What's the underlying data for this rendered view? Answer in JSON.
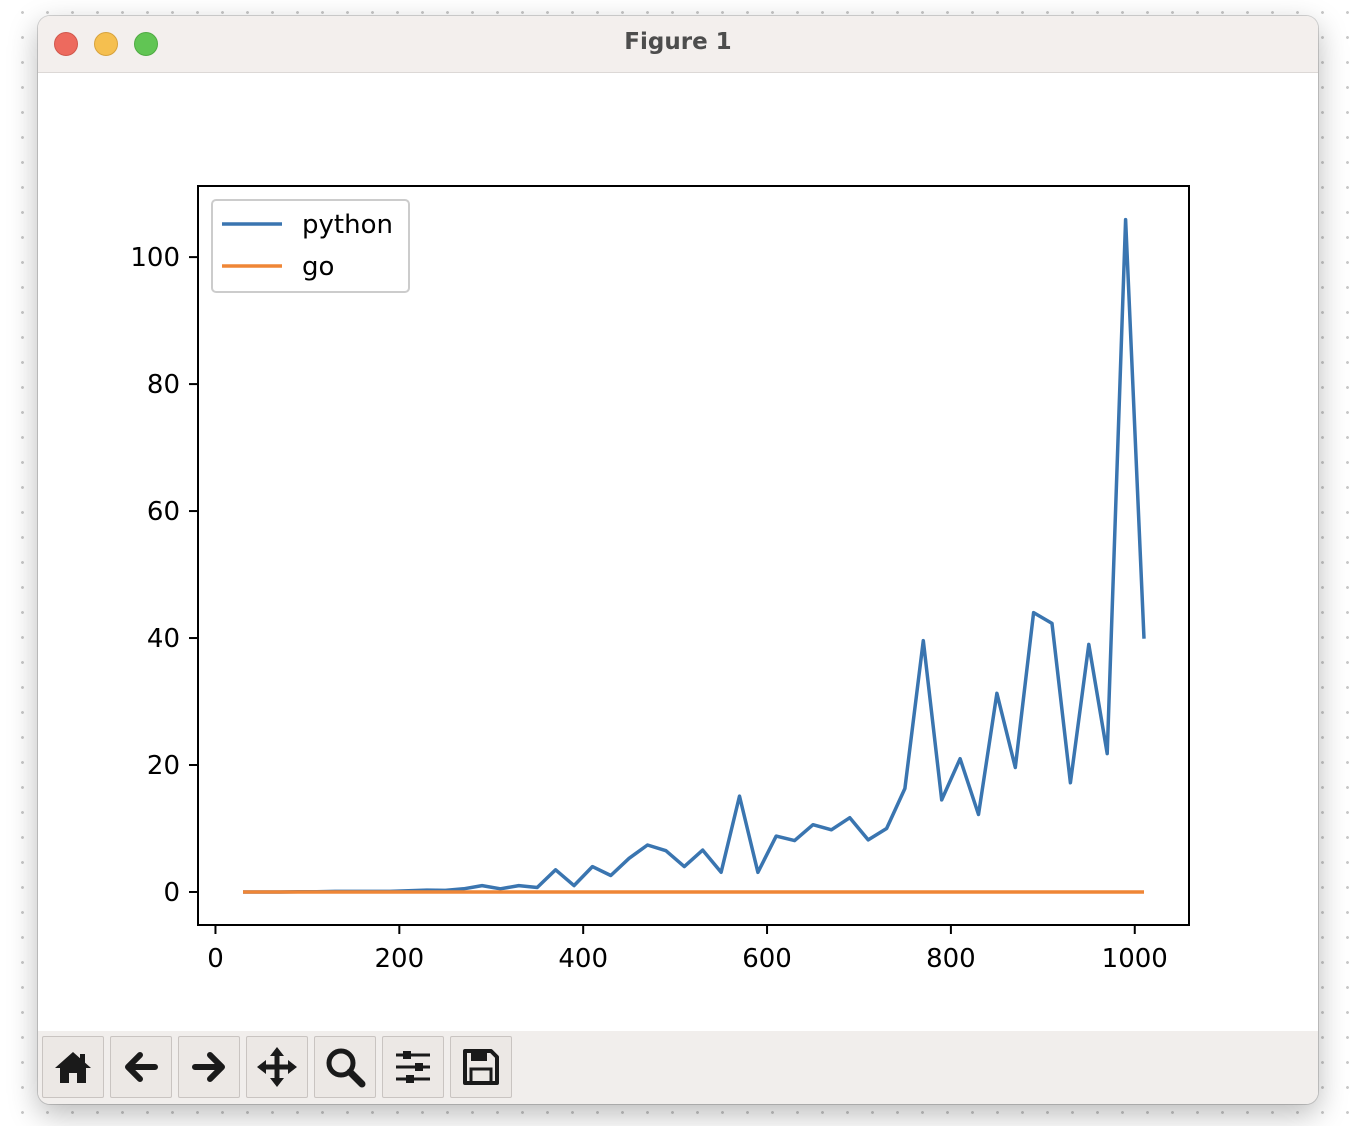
{
  "window": {
    "title": "Figure 1"
  },
  "toolbar": {
    "buttons": [
      {
        "name": "home-button",
        "icon": "home-icon"
      },
      {
        "name": "back-button",
        "icon": "arrow-left-icon"
      },
      {
        "name": "forward-button",
        "icon": "arrow-right-icon"
      },
      {
        "name": "pan-button",
        "icon": "move-icon"
      },
      {
        "name": "zoom-button",
        "icon": "magnifier-icon"
      },
      {
        "name": "configure-subplots-button",
        "icon": "sliders-icon"
      },
      {
        "name": "save-button",
        "icon": "floppy-disk-icon"
      }
    ]
  },
  "chart_data": {
    "type": "line",
    "title": "",
    "xlabel": "",
    "ylabel": "",
    "xlim": [
      -19,
      1059
    ],
    "ylim": [
      -5.2,
      111.2
    ],
    "xticks": [
      0,
      200,
      400,
      600,
      800,
      1000
    ],
    "yticks": [
      0,
      20,
      40,
      60,
      80,
      100
    ],
    "legend": {
      "placement": "upper left"
    },
    "grid": false,
    "x": [
      30,
      50,
      70,
      90,
      110,
      130,
      150,
      170,
      190,
      210,
      230,
      250,
      270,
      290,
      310,
      330,
      350,
      370,
      390,
      410,
      430,
      450,
      470,
      490,
      510,
      530,
      550,
      570,
      590,
      610,
      630,
      650,
      670,
      690,
      710,
      730,
      750,
      770,
      790,
      810,
      830,
      850,
      870,
      890,
      910,
      930,
      950,
      970,
      990,
      1010
    ],
    "series": [
      {
        "name": "python",
        "color": "#3a75b0",
        "values": [
          0.0,
          0.0,
          0.0,
          0.05,
          0.05,
          0.1,
          0.1,
          0.1,
          0.1,
          0.2,
          0.3,
          0.25,
          0.5,
          1.0,
          0.5,
          1.0,
          0.7,
          3.5,
          1.0,
          4.0,
          2.6,
          5.3,
          7.4,
          6.5,
          4.0,
          6.6,
          3.1,
          15.1,
          3.1,
          8.8,
          8.1,
          10.6,
          9.8,
          11.7,
          8.2,
          10.0,
          16.3,
          39.6,
          14.5,
          21.0,
          12.2,
          31.3,
          19.6,
          44.0,
          42.3,
          17.2,
          39.0,
          21.8,
          105.9,
          39.9
        ]
      },
      {
        "name": "go",
        "color": "#ef8636",
        "values": [
          0.0,
          0.0,
          0.0,
          0.0,
          0.0,
          0.0,
          0.0,
          0.0,
          0.0,
          0.0,
          0.0,
          0.0,
          0.0,
          0.0,
          0.0,
          0.0,
          0.0,
          0.0,
          0.0,
          0.0,
          0.0,
          0.0,
          0.0,
          0.0,
          0.0,
          0.0,
          0.0,
          0.0,
          0.0,
          0.0,
          0.0,
          0.0,
          0.0,
          0.0,
          0.0,
          0.0,
          0.0,
          0.0,
          0.0,
          0.0,
          0.0,
          0.0,
          0.0,
          0.0,
          0.0,
          0.0,
          0.0,
          0.0,
          0.0,
          0.0
        ]
      }
    ]
  }
}
